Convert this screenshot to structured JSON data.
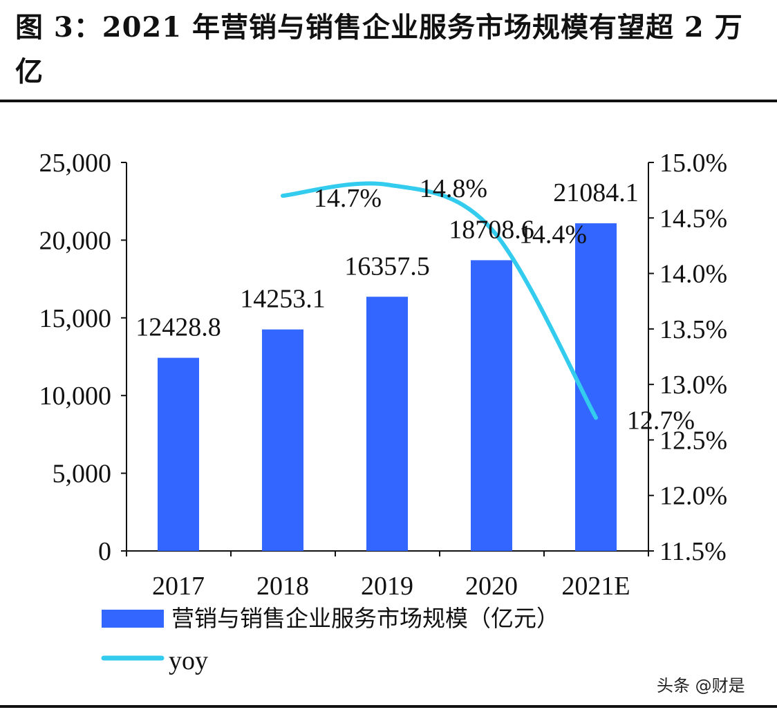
{
  "title": "图 3：2021 年营销与销售企业服务市场规模有望超 2 万亿",
  "watermark": "头条 @财是",
  "chart_data": {
    "type": "bar+line",
    "categories": [
      "2017",
      "2018",
      "2019",
      "2020",
      "2021E"
    ],
    "series": [
      {
        "name": "营销与销售企业服务市场规模（亿元）",
        "type": "bar",
        "axis": "left",
        "color": "#3366ff",
        "values": [
          12428.8,
          14253.1,
          16357.5,
          18708.6,
          21084.1
        ],
        "labels": [
          "12428.8",
          "14253.1",
          "16357.5",
          "18708.6",
          "21084.1"
        ]
      },
      {
        "name": "yoy",
        "type": "line",
        "axis": "right",
        "color": "#33ccee",
        "values": [
          null,
          14.7,
          14.8,
          14.4,
          12.7
        ],
        "labels": [
          "",
          "14.7%",
          "14.8%",
          "14.4%",
          "12.7%"
        ]
      }
    ],
    "left_axis": {
      "ylim": [
        0,
        25000
      ],
      "ticks": [
        "0",
        "5,000",
        "10,000",
        "15,000",
        "20,000",
        "25,000"
      ]
    },
    "right_axis": {
      "ylim": [
        11.5,
        15.0
      ],
      "ticks": [
        "11.5%",
        "12.0%",
        "12.5%",
        "13.0%",
        "13.5%",
        "14.0%",
        "14.5%",
        "15.0%"
      ]
    },
    "legend": "bottom-left",
    "grid": false
  }
}
